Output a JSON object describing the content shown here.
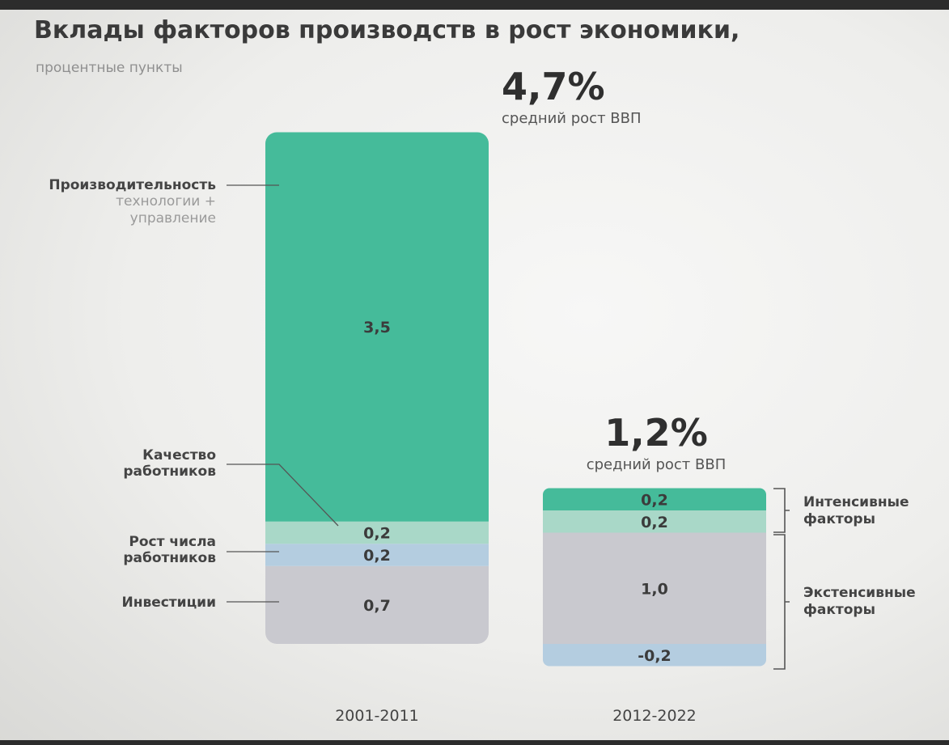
{
  "title": "Вклады факторов производств в рост экономики,",
  "subtitle": "процентные пункты",
  "colors": {
    "productivity": "#45bb9a",
    "quality": "#a9d8c8",
    "workers_growth": "#b4cde0",
    "investment": "#c9c9cf",
    "segment_text": "#3b3b3b"
  },
  "chart_data": {
    "type": "bar",
    "stacked": true,
    "title": "Вклады факторов производств в рост экономики,",
    "subtitle": "процентные пункты",
    "categories": [
      "2001-2011",
      "2012-2022"
    ],
    "totals": [
      {
        "value": "4,7%",
        "label": "средний рост ВВП"
      },
      {
        "value": "1,2%",
        "label": "средний рост ВВП"
      }
    ],
    "series": [
      {
        "name": "Производительность",
        "color": "#45bb9a",
        "values": [
          3.5,
          0.2
        ],
        "labels": [
          "3,5",
          "0,2"
        ]
      },
      {
        "name": "Качество работников",
        "color": "#a9d8c8",
        "values": [
          0.2,
          0.2
        ],
        "labels": [
          "0,2",
          "0,2"
        ]
      },
      {
        "name": "Рост числа работников",
        "color": "#b4cde0",
        "values": [
          0.2,
          -0.2
        ],
        "labels": [
          "0,2",
          "-0,2"
        ]
      },
      {
        "name": "Инвестиции",
        "color": "#c9c9cf",
        "values": [
          0.7,
          1.0
        ],
        "labels": [
          "0,7",
          "1,0"
        ]
      }
    ],
    "labels": {
      "productivity": "Производительность",
      "productivity_sub": [
        "технологии +",
        "управление"
      ],
      "quality": [
        "Качество",
        "работников"
      ],
      "workers_growth": [
        "Рост числа",
        "работников"
      ],
      "investment": "Инвестиции"
    },
    "groups": [
      {
        "name": [
          "Интенсивные",
          "факторы"
        ]
      },
      {
        "name": [
          "Экстенсивные",
          "факторы"
        ]
      }
    ]
  }
}
